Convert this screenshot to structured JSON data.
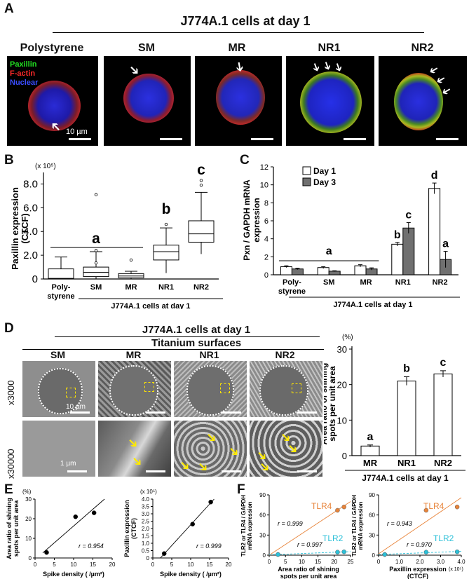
{
  "panels": {
    "A": {
      "letter": "A",
      "title": "J774A.1 cells at day 1",
      "columns": [
        "Polystyrene",
        "SM",
        "MR",
        "NR1",
        "NR2"
      ],
      "legend": [
        {
          "label": "Paxillin",
          "color": "#22e022"
        },
        {
          "label": "F-actin",
          "color": "#ff2a2a"
        },
        {
          "label": "Nuclear",
          "color": "#3a4dff"
        }
      ],
      "scalebar": "10 µm"
    },
    "B": {
      "letter": "B",
      "multiplier": "(x 10⁵)",
      "ylabel": "Paxillin expression",
      "ylabel2": "(CTCF)",
      "xlabel": "J774A.1 cells at day 1",
      "group_letters": [
        "a",
        "b",
        "c"
      ]
    },
    "C": {
      "letter": "C",
      "ylabel": "Pxn / GAPDH mRNA",
      "ylabel2": "expression",
      "xlabel": "J774A.1 cells at day 1",
      "legend": [
        "Day 1",
        "Day 3"
      ],
      "group_letters": [
        "a",
        "b",
        "c",
        "d",
        "a"
      ]
    },
    "D": {
      "letter": "D",
      "title": "J774A.1 cells at day 1",
      "subtitle": "Titanium surfaces",
      "columns": [
        "SM",
        "MR",
        "NR1",
        "NR2"
      ],
      "rows": [
        "x3000",
        "x30000"
      ],
      "scalebar_top": "10 µm",
      "scalebar_bottom": "1 µm",
      "bar_unit": "(%)",
      "bar_ylabel": "Area ratio of shining",
      "bar_ylabel2": "spots per unit area",
      "bar_xlabel": "J774A.1 cells at day 1",
      "group_letters": [
        "a",
        "b",
        "c"
      ]
    },
    "E": {
      "letter": "E",
      "left_unit": "(%)",
      "left_ylabel": [
        "Area ratio of shining",
        "spots per unit area"
      ],
      "left_r": "r = 0.954",
      "right_unit": "(x 10⁵)",
      "right_ylabel": [
        "Paxillin expression",
        "(CTCF)"
      ],
      "right_r": "r = 0.999",
      "xlabel": "Spike density ( /µm²)"
    },
    "F": {
      "letter": "F",
      "ylabel": [
        "TLR2 or TLR4 / GAPDH",
        "mRNA expression"
      ],
      "left_xlabel": [
        "Area ratio of shining",
        "spots per unit area"
      ],
      "right_xlabel": [
        "Paxillin expression",
        "(CTCF)"
      ],
      "right_mult": "(x 10⁵)",
      "tlr4": "TLR4",
      "tlr2": "TLR2",
      "left_r4": "r = 0.999",
      "left_r2": "r = 0.997",
      "right_r4": "r = 0.943",
      "right_r2": "r = 0.970",
      "colors": {
        "tlr4": "#e8843a",
        "tlr2": "#2cc0d8"
      }
    }
  },
  "chart_data": [
    {
      "id": "B",
      "type": "box",
      "categories": [
        "Poly-styrene",
        "SM",
        "MR",
        "NR1",
        "NR2"
      ],
      "category_lines": [
        [
          "Poly-",
          "styrene"
        ],
        [
          "SM"
        ],
        [
          "MR"
        ],
        [
          "NR1"
        ],
        [
          "NR2"
        ]
      ],
      "ylim": [
        0,
        8.5
      ],
      "yticks": [
        0,
        2.0,
        4.0,
        6.0,
        8.0
      ],
      "ytick_labels": [
        "0",
        "2.0",
        "4.0",
        "6.0",
        "8.0"
      ],
      "boxes": [
        {
          "min": 0,
          "q1": 0,
          "median": 0.05,
          "q3": 0.85,
          "max": 1.85,
          "outliers": []
        },
        {
          "min": 0,
          "q1": 0.2,
          "median": 0.55,
          "q3": 1.0,
          "max": 2.3,
          "outliers": [
            7.1,
            2.4,
            1.35
          ]
        },
        {
          "min": 0,
          "q1": 0.1,
          "median": 0.25,
          "q3": 0.45,
          "max": 0.65,
          "outliers": [
            1.6
          ]
        },
        {
          "min": 0.5,
          "q1": 1.6,
          "median": 2.3,
          "q3": 2.85,
          "max": 4.3,
          "outliers": [
            4.6
          ]
        },
        {
          "min": 2.1,
          "q1": 3.1,
          "median": 3.8,
          "q3": 4.9,
          "max": 7.3,
          "outliers": [
            8.3,
            7.9
          ]
        }
      ],
      "letters": [
        {
          "label": "a",
          "cats": [
            0,
            2
          ],
          "y": 3.0
        },
        {
          "label": "b",
          "cats": [
            3,
            3
          ],
          "y": 5.5
        },
        {
          "label": "c",
          "cats": [
            4,
            4
          ],
          "y": 8.8
        }
      ]
    },
    {
      "id": "C",
      "type": "bar",
      "categories": [
        "Poly-styrene",
        "SM",
        "MR",
        "NR1",
        "NR2"
      ],
      "category_lines": [
        [
          "Poly-",
          "styrene"
        ],
        [
          "SM"
        ],
        [
          "MR"
        ],
        [
          "NR1"
        ],
        [
          "NR2"
        ]
      ],
      "ylim": [
        0,
        12
      ],
      "yticks": [
        0,
        2,
        4,
        6,
        8,
        10,
        12
      ],
      "series": [
        {
          "name": "Day 1",
          "values": [
            0.9,
            0.8,
            1.0,
            3.4,
            9.6
          ],
          "errors": [
            0.1,
            0.1,
            0.12,
            0.2,
            0.6
          ],
          "color": "#ffffff"
        },
        {
          "name": "Day 3",
          "values": [
            0.65,
            0.4,
            0.65,
            5.2,
            1.7
          ],
          "errors": [
            0.08,
            0.05,
            0.12,
            0.6,
            0.9
          ],
          "color": "#707070"
        }
      ]
    },
    {
      "id": "D",
      "type": "bar",
      "categories": [
        "MR",
        "NR1",
        "NR2"
      ],
      "ylim": [
        0,
        30
      ],
      "yticks": [
        0,
        10,
        20,
        30
      ],
      "values": [
        2.7,
        21,
        23
      ],
      "errors": [
        0.3,
        1.2,
        0.9
      ],
      "letters": [
        "a",
        "b",
        "c"
      ]
    },
    {
      "id": "E-left",
      "type": "scatter",
      "xlim": [
        0,
        20
      ],
      "xticks": [
        0,
        5,
        10,
        15,
        20
      ],
      "ylim": [
        0,
        30
      ],
      "yticks": [
        0,
        10,
        20,
        30
      ],
      "x": [
        3,
        10.5,
        15.3
      ],
      "y": [
        2.8,
        21,
        23
      ]
    },
    {
      "id": "E-right",
      "type": "scatter",
      "xlim": [
        0,
        20
      ],
      "xticks": [
        0,
        5,
        10,
        15,
        20
      ],
      "ylim": [
        0,
        4.0
      ],
      "yticks": [
        0,
        0.5,
        1.0,
        1.5,
        2.0,
        2.5,
        3.0,
        3.5,
        4.0
      ],
      "ytick_labels": [
        "0",
        "0.5",
        "1.0",
        "1.5",
        "2.0",
        "2.5",
        "3.0",
        "3.5",
        "4.0"
      ],
      "x": [
        3,
        10.5,
        15.3
      ],
      "y": [
        0.3,
        2.3,
        3.8
      ]
    },
    {
      "id": "F-left",
      "type": "scatter",
      "xlim": [
        0,
        25
      ],
      "xticks": [
        0,
        5,
        10,
        15,
        20,
        25
      ],
      "ylim": [
        0,
        90
      ],
      "yticks": [
        0,
        30,
        60,
        90
      ],
      "series": [
        {
          "name": "TLR4",
          "x": [
            2.7,
            21,
            23
          ],
          "y": [
            1,
            67,
            72
          ]
        },
        {
          "name": "TLR2",
          "x": [
            2.7,
            21,
            23
          ],
          "y": [
            1,
            4.5,
            5
          ]
        }
      ]
    },
    {
      "id": "F-right",
      "type": "scatter",
      "xlim": [
        0,
        4.0
      ],
      "xticks": [
        0,
        1.0,
        2.0,
        3.0,
        4.0
      ],
      "xtick_labels": [
        "0",
        "1.0",
        "2.0",
        "3.0",
        "4.0"
      ],
      "ylim": [
        0,
        90
      ],
      "yticks": [
        0,
        30,
        60,
        90
      ],
      "series": [
        {
          "name": "TLR4",
          "x": [
            0.3,
            2.3,
            3.8
          ],
          "y": [
            1,
            67,
            72
          ]
        },
        {
          "name": "TLR2",
          "x": [
            0.3,
            2.3,
            3.8
          ],
          "y": [
            1,
            4.5,
            5
          ]
        }
      ]
    }
  ]
}
